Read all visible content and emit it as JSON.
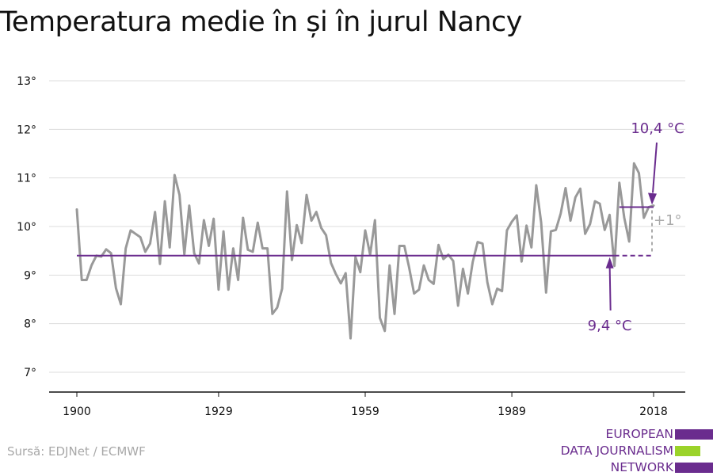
{
  "chart_data": {
    "type": "line",
    "title": "Temperatura medie în și în jurul Nancy",
    "xlabel": "",
    "ylabel": "",
    "xlim": [
      1900,
      2018
    ],
    "ylim": [
      7,
      13
    ],
    "x_ticks": [
      1900,
      1929,
      1959,
      1989,
      2018
    ],
    "y_ticks": [
      {
        "value": 7,
        "label": "7°"
      },
      {
        "value": 8,
        "label": "8°"
      },
      {
        "value": 9,
        "label": "9°"
      },
      {
        "value": 10,
        "label": "10°"
      },
      {
        "value": 11,
        "label": "11°"
      },
      {
        "value": 12,
        "label": "12°"
      },
      {
        "value": 13,
        "label": "13°"
      }
    ],
    "grid": true,
    "series": [
      {
        "color": "#999999",
        "x": [
          1900,
          1901,
          1902,
          1903,
          1904,
          1905,
          1906,
          1907,
          1908,
          1909,
          1910,
          1911,
          1912,
          1913,
          1914,
          1915,
          1916,
          1917,
          1918,
          1919,
          1920,
          1921,
          1922,
          1923,
          1924,
          1925,
          1926,
          1927,
          1928,
          1929,
          1930,
          1931,
          1932,
          1933,
          1934,
          1935,
          1936,
          1937,
          1938,
          1939,
          1940,
          1941,
          1942,
          1943,
          1944,
          1945,
          1946,
          1947,
          1948,
          1949,
          1950,
          1951,
          1952,
          1953,
          1954,
          1955,
          1956,
          1957,
          1958,
          1959,
          1960,
          1961,
          1962,
          1963,
          1964,
          1965,
          1966,
          1967,
          1968,
          1969,
          1970,
          1971,
          1972,
          1973,
          1974,
          1975,
          1976,
          1977,
          1978,
          1979,
          1980,
          1981,
          1982,
          1983,
          1984,
          1985,
          1986,
          1987,
          1988,
          1989,
          1990,
          1991,
          1992,
          1993,
          1994,
          1995,
          1996,
          1997,
          1998,
          1999,
          2000,
          2001,
          2002,
          2003,
          2004,
          2005,
          2006,
          2007,
          2008,
          2009,
          2010,
          2011,
          2012,
          2013,
          2014,
          2015,
          2016,
          2017,
          2018
        ],
        "values": [
          10.35,
          8.9,
          8.9,
          9.2,
          9.4,
          9.38,
          9.53,
          9.45,
          8.73,
          8.4,
          9.55,
          9.92,
          9.85,
          9.78,
          9.48,
          9.65,
          10.3,
          9.23,
          10.52,
          9.57,
          11.06,
          10.65,
          9.43,
          10.43,
          9.45,
          9.24,
          10.13,
          9.6,
          10.16,
          8.7,
          9.9,
          8.7,
          9.55,
          8.9,
          10.18,
          9.52,
          9.48,
          10.08,
          9.55,
          9.55,
          8.2,
          8.33,
          8.72,
          10.72,
          9.31,
          10.03,
          9.66,
          10.65,
          10.12,
          10.3,
          9.97,
          9.82,
          9.25,
          9.02,
          8.83,
          9.04,
          7.7,
          9.37,
          9.06,
          9.92,
          9.42,
          10.13,
          8.12,
          7.85,
          9.2,
          8.2,
          9.6,
          9.6,
          9.15,
          8.62,
          8.7,
          9.2,
          8.9,
          8.82,
          9.62,
          9.33,
          9.42,
          9.29,
          8.37,
          9.13,
          8.62,
          9.27,
          9.68,
          9.65,
          8.85,
          8.4,
          8.72,
          8.67,
          9.92,
          10.1,
          10.23,
          9.28,
          10.02,
          9.57,
          10.85,
          10.08,
          8.64,
          9.9,
          9.93,
          10.27,
          10.79,
          10.12,
          10.6,
          10.78,
          9.85,
          10.05,
          10.52,
          10.47,
          9.93,
          10.24,
          9.19,
          10.9,
          10.18,
          9.69,
          11.3,
          11.1,
          10.18,
          10.4,
          10.43
        ]
      }
    ],
    "annotations": {
      "baseline_value": 9.4,
      "baseline_label": "9,4 °C",
      "recent_value": 10.4,
      "recent_label": "10,4 °C",
      "recent_start": 2011,
      "baseline_solid_end": 2010,
      "difference_label": "+1°",
      "accent_color": "#6a2c8e",
      "difference_color": "#aaaaaa"
    }
  },
  "source": "Sursă: EDJNet / ECMWF",
  "logo": {
    "lines": [
      "EUROPEAN",
      "DATA JOURNALISM",
      "NETWORK"
    ],
    "colors": [
      "#6a2c8e",
      "#9bd32a",
      "#6a2c8e"
    ]
  }
}
